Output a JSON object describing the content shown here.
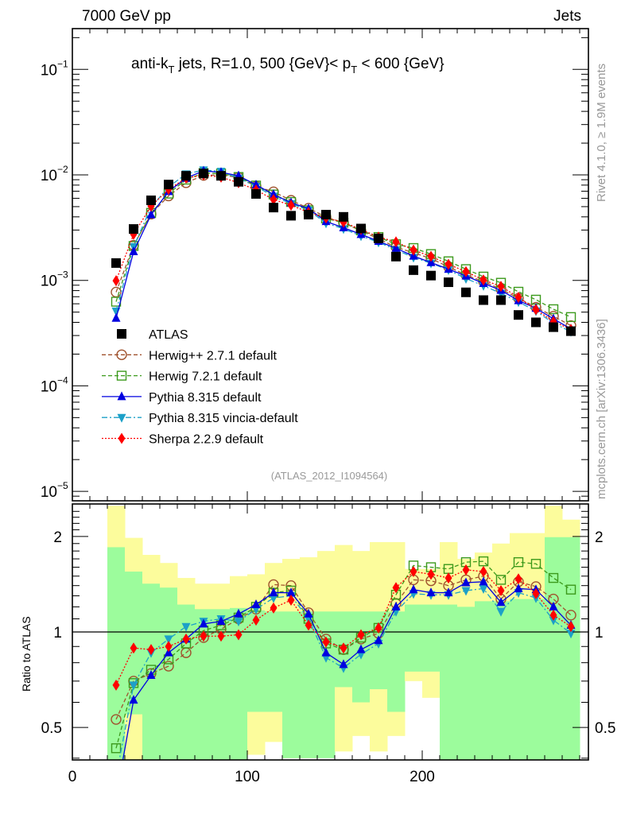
{
  "header": {
    "left_label": "7000 GeV pp",
    "right_label": "Jets"
  },
  "side_labels": {
    "rivet": "Rivet 4.1.0, ≥ 1.9M events",
    "mcplots": "mcplots.cern.ch [arXiv:1306.3436]"
  },
  "chart_data": [
    {
      "type": "scatter",
      "panel": "main",
      "title_parts": {
        "pre": "anti-k",
        "sub1": "T",
        "mid": " jets, R=1.0, 500 {GeV}< p",
        "sub2": "T",
        "post": " < 600 {GeV}"
      },
      "analysis_tag": "(ATLAS_2012_I1094564)",
      "yscale": "log",
      "ylim": [
        8e-06,
        0.25
      ],
      "xlim": [
        0,
        295
      ],
      "ytick_labels": [
        {
          "base": "10",
          "exp": "−1",
          "value": 0.1
        },
        {
          "base": "10",
          "exp": "−2",
          "value": 0.01
        },
        {
          "base": "10",
          "exp": "−3",
          "value": 0.001
        },
        {
          "base": "10",
          "exp": "−4",
          "value": 0.0001
        },
        {
          "base": "10",
          "exp": "−5",
          "value": 1e-05
        }
      ],
      "x": [
        25,
        35,
        45,
        55,
        65,
        75,
        85,
        95,
        105,
        115,
        125,
        135,
        145,
        155,
        165,
        175,
        185,
        195,
        205,
        215,
        225,
        235,
        245,
        255,
        265,
        275,
        285
      ],
      "legend_position": "middle-left",
      "series": [
        {
          "name": "ATLAS",
          "key": "atlas",
          "marker": "square",
          "color": "#000000",
          "line": "none",
          "values": [
            0.00146,
            0.00307,
            0.00574,
            0.0081,
            0.0098,
            0.0103,
            0.0098,
            0.0086,
            0.0066,
            0.0049,
            0.0041,
            0.0042,
            0.0042,
            0.004,
            0.0031,
            0.0025,
            0.00168,
            0.00125,
            0.00111,
            0.00096,
            0.00077,
            0.00065,
            0.00065,
            0.00047,
            0.0004,
            0.00036,
            0.00033
          ]
        },
        {
          "name": "Herwig++ 2.7.1 default",
          "key": "herwigpp",
          "marker": "circle-open",
          "color": "#a0522d",
          "line": "dashed"
        },
        {
          "name": "Herwig 7.2.1 default",
          "key": "herwig7",
          "marker": "square-open",
          "color": "#3c9a1c",
          "line": "dashed"
        },
        {
          "name": "Pythia 8.315 default",
          "key": "pythia",
          "marker": "triangle-up",
          "color": "#0000e0",
          "line": "solid"
        },
        {
          "name": "Pythia 8.315 vincia-default",
          "key": "vincia",
          "marker": "triangle-down",
          "color": "#1ca0c8",
          "line": "dashdot"
        },
        {
          "name": "Sherpa 2.2.9 default",
          "key": "sherpa",
          "marker": "diamond",
          "color": "#ff0000",
          "line": "dotted"
        }
      ]
    },
    {
      "type": "scatter",
      "panel": "ratio",
      "ylabel": "Ratio to ATLAS",
      "yscale": "log",
      "ylim": [
        0.39,
        2.5
      ],
      "xlim": [
        0,
        295
      ],
      "ytick_labels": [
        {
          "label": "0.5",
          "value": 0.5
        },
        {
          "label": "1",
          "value": 1
        },
        {
          "label": "2",
          "value": 2
        }
      ],
      "xtick_labels": [
        {
          "label": "0",
          "value": 0
        },
        {
          "label": "100",
          "value": 100
        },
        {
          "label": "200",
          "value": 200
        }
      ],
      "reference_line": 1,
      "x": [
        25,
        35,
        45,
        55,
        65,
        75,
        85,
        95,
        105,
        115,
        125,
        135,
        145,
        155,
        165,
        175,
        185,
        195,
        205,
        215,
        225,
        235,
        245,
        255,
        265,
        275,
        285
      ],
      "bands": {
        "inner_color": "#9cfc9c",
        "outer_color": "#fcfc9c",
        "inner": [
          [
            0.3,
            1.85
          ],
          [
            0.55,
            1.55
          ],
          [
            0.3,
            1.42
          ],
          [
            0.3,
            1.38
          ],
          [
            0.3,
            1.22
          ],
          [
            0.3,
            1.18
          ],
          [
            0.3,
            1.18
          ],
          [
            0.3,
            1.19
          ],
          [
            0.56,
            1.17
          ],
          [
            0.56,
            1.16
          ],
          [
            0.4,
            1.16
          ],
          [
            0.4,
            1.16
          ],
          [
            0.4,
            1.16
          ],
          [
            0.67,
            1.16
          ],
          [
            0.6,
            1.16
          ],
          [
            0.66,
            1.16
          ],
          [
            0.56,
            1.16
          ],
          [
            0.75,
            1.22
          ],
          [
            0.75,
            1.22
          ],
          [
            0.39,
            1.22
          ],
          [
            0.39,
            1.2
          ],
          [
            0.39,
            1.25
          ],
          [
            0.39,
            1.25
          ],
          [
            0.39,
            1.27
          ],
          [
            0.39,
            1.27
          ],
          [
            0.39,
            1.99
          ],
          [
            0.39,
            1.99
          ]
        ],
        "outer": [
          [
            0.3,
            2.5
          ],
          [
            0.35,
            1.98
          ],
          [
            0.35,
            1.75
          ],
          [
            0.35,
            1.65
          ],
          [
            0.35,
            1.48
          ],
          [
            0.35,
            1.42
          ],
          [
            0.35,
            1.42
          ],
          [
            0.35,
            1.5
          ],
          [
            0.41,
            1.52
          ],
          [
            0.45,
            1.65
          ],
          [
            0.4,
            1.7
          ],
          [
            0.4,
            1.72
          ],
          [
            0.41,
            1.8
          ],
          [
            0.42,
            1.88
          ],
          [
            0.47,
            1.8
          ],
          [
            0.42,
            1.92
          ],
          [
            0.47,
            1.92
          ],
          [
            0.7,
            1.58
          ],
          [
            0.62,
            1.58
          ],
          [
            0.39,
            1.92
          ],
          [
            0.39,
            1.7
          ],
          [
            0.39,
            1.78
          ],
          [
            0.39,
            1.9
          ],
          [
            0.39,
            2.05
          ],
          [
            0.39,
            2.05
          ],
          [
            0.39,
            2.5
          ],
          [
            0.39,
            2.26
          ]
        ]
      },
      "series": [
        {
          "key": "herwigpp",
          "values": [
            0.53,
            0.7,
            0.74,
            0.78,
            0.86,
            0.96,
            1.02,
            1.1,
            1.18,
            1.41,
            1.4,
            1.15,
            0.95,
            0.88,
            0.95,
            0.99,
            1.23,
            1.46,
            1.45,
            1.4,
            1.46,
            1.5,
            1.27,
            1.44,
            1.39,
            1.27,
            1.13
          ]
        },
        {
          "key": "herwig7",
          "values": [
            0.43,
            0.69,
            0.76,
            0.82,
            0.92,
            1.01,
            1.05,
            1.11,
            1.2,
            1.33,
            1.35,
            1.1,
            0.92,
            0.88,
            0.96,
            1.03,
            1.31,
            1.62,
            1.6,
            1.58,
            1.66,
            1.67,
            1.46,
            1.66,
            1.64,
            1.48,
            1.36
          ]
        },
        {
          "key": "pythia",
          "values": [
            0.3,
            0.61,
            0.73,
            0.86,
            0.95,
            1.06,
            1.08,
            1.14,
            1.22,
            1.33,
            1.33,
            1.14,
            0.86,
            0.79,
            0.88,
            0.94,
            1.2,
            1.36,
            1.33,
            1.33,
            1.43,
            1.44,
            1.24,
            1.37,
            1.36,
            1.2,
            1.05
          ]
        },
        {
          "key": "vincia",
          "values": [
            0.35,
            0.68,
            0.86,
            0.95,
            1.04,
            1.08,
            1.1,
            1.08,
            1.18,
            1.28,
            1.3,
            1.1,
            0.83,
            0.77,
            0.85,
            0.92,
            1.16,
            1.32,
            1.31,
            1.31,
            1.35,
            1.37,
            1.16,
            1.33,
            1.28,
            1.09,
            0.99
          ]
        },
        {
          "key": "sherpa",
          "values": [
            0.68,
            0.89,
            0.88,
            0.9,
            0.95,
            0.97,
            0.97,
            0.98,
            1.09,
            1.19,
            1.26,
            1.05,
            0.93,
            0.89,
            0.98,
            1.03,
            1.38,
            1.55,
            1.52,
            1.48,
            1.57,
            1.55,
            1.35,
            1.47,
            1.32,
            1.13,
            1.04
          ]
        }
      ]
    }
  ]
}
